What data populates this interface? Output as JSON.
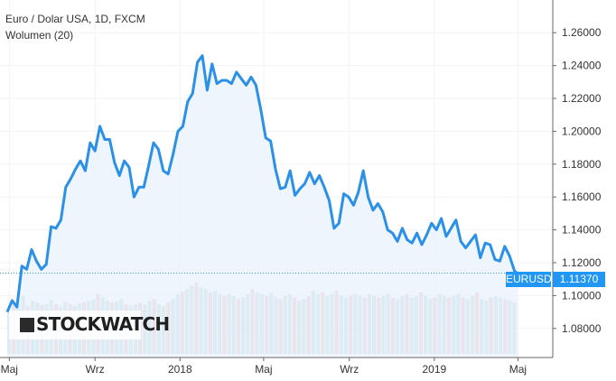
{
  "chart_title": "Euro / Dolar USA, 1D, FXCM",
  "indicator_title": "Wolumen (20)",
  "logo_text": "STOCKWATCH",
  "symbol_tag": "EURUSD",
  "last_price_label": "1.11370",
  "colors": {
    "line": "#2b90e8",
    "area": "#eaf3fc",
    "vol_up": "#9fc9c1",
    "vol_down": "#ec9fa3",
    "axis_text": "#333333",
    "tag": "#2196f3"
  },
  "chart_data": {
    "type": "line",
    "title": "Euro / Dolar USA, 1D, FXCM",
    "x_ticks": [
      "Maj",
      "Wrz",
      "2018",
      "Maj",
      "Wrz",
      "2019",
      "Maj"
    ],
    "y_ticks": [
      "1.08000",
      "1.10000",
      "1.12000",
      "1.14000",
      "1.16000",
      "1.18000",
      "1.20000",
      "1.22000",
      "1.24000",
      "1.26000"
    ],
    "ylim": [
      1.07,
      1.27
    ],
    "x_range": [
      "2017-04-28",
      "2019-06-20"
    ],
    "series": [
      {
        "points": [
          [
            "2017-04-28",
            1.09
          ],
          [
            "2017-05-05",
            1.097
          ],
          [
            "2017-05-12",
            1.093
          ],
          [
            "2017-05-19",
            1.118
          ],
          [
            "2017-05-26",
            1.116
          ],
          [
            "2017-06-02",
            1.128
          ],
          [
            "2017-06-09",
            1.121
          ],
          [
            "2017-06-16",
            1.116
          ],
          [
            "2017-06-23",
            1.119
          ],
          [
            "2017-06-30",
            1.142
          ],
          [
            "2017-07-07",
            1.141
          ],
          [
            "2017-07-14",
            1.146
          ],
          [
            "2017-07-21",
            1.166
          ],
          [
            "2017-07-28",
            1.171
          ],
          [
            "2017-08-04",
            1.177
          ],
          [
            "2017-08-11",
            1.182
          ],
          [
            "2017-08-18",
            1.176
          ],
          [
            "2017-08-25",
            1.193
          ],
          [
            "2017-09-01",
            1.188
          ],
          [
            "2017-09-08",
            1.203
          ],
          [
            "2017-09-15",
            1.195
          ],
          [
            "2017-09-22",
            1.195
          ],
          [
            "2017-09-29",
            1.181
          ],
          [
            "2017-10-06",
            1.173
          ],
          [
            "2017-10-13",
            1.182
          ],
          [
            "2017-10-20",
            1.178
          ],
          [
            "2017-10-27",
            1.16
          ],
          [
            "2017-11-03",
            1.166
          ],
          [
            "2017-11-10",
            1.166
          ],
          [
            "2017-11-17",
            1.179
          ],
          [
            "2017-11-24",
            1.193
          ],
          [
            "2017-12-01",
            1.189
          ],
          [
            "2017-12-08",
            1.176
          ],
          [
            "2017-12-15",
            1.174
          ],
          [
            "2017-12-22",
            1.186
          ],
          [
            "2017-12-29",
            1.2
          ],
          [
            "2018-01-05",
            1.203
          ],
          [
            "2018-01-12",
            1.218
          ],
          [
            "2018-01-19",
            1.223
          ],
          [
            "2018-01-26",
            1.242
          ],
          [
            "2018-02-02",
            1.246
          ],
          [
            "2018-02-09",
            1.225
          ],
          [
            "2018-02-16",
            1.241
          ],
          [
            "2018-02-23",
            1.229
          ],
          [
            "2018-03-02",
            1.231
          ],
          [
            "2018-03-09",
            1.231
          ],
          [
            "2018-03-16",
            1.229
          ],
          [
            "2018-03-23",
            1.236
          ],
          [
            "2018-03-30",
            1.232
          ],
          [
            "2018-04-06",
            1.228
          ],
          [
            "2018-04-13",
            1.233
          ],
          [
            "2018-04-20",
            1.228
          ],
          [
            "2018-04-27",
            1.213
          ],
          [
            "2018-05-04",
            1.196
          ],
          [
            "2018-05-11",
            1.194
          ],
          [
            "2018-05-18",
            1.177
          ],
          [
            "2018-05-25",
            1.165
          ],
          [
            "2018-06-01",
            1.166
          ],
          [
            "2018-06-08",
            1.176
          ],
          [
            "2018-06-15",
            1.161
          ],
          [
            "2018-06-22",
            1.165
          ],
          [
            "2018-06-29",
            1.168
          ],
          [
            "2018-07-06",
            1.175
          ],
          [
            "2018-07-13",
            1.168
          ],
          [
            "2018-07-20",
            1.173
          ],
          [
            "2018-07-27",
            1.166
          ],
          [
            "2018-08-03",
            1.158
          ],
          [
            "2018-08-10",
            1.141
          ],
          [
            "2018-08-17",
            1.144
          ],
          [
            "2018-08-24",
            1.162
          ],
          [
            "2018-08-31",
            1.16
          ],
          [
            "2018-09-07",
            1.155
          ],
          [
            "2018-09-14",
            1.163
          ],
          [
            "2018-09-21",
            1.176
          ],
          [
            "2018-09-28",
            1.16
          ],
          [
            "2018-10-05",
            1.152
          ],
          [
            "2018-10-12",
            1.156
          ],
          [
            "2018-10-19",
            1.151
          ],
          [
            "2018-10-26",
            1.14
          ],
          [
            "2018-11-02",
            1.138
          ],
          [
            "2018-11-09",
            1.133
          ],
          [
            "2018-11-16",
            1.141
          ],
          [
            "2018-11-23",
            1.134
          ],
          [
            "2018-11-30",
            1.132
          ],
          [
            "2018-12-07",
            1.138
          ],
          [
            "2018-12-14",
            1.131
          ],
          [
            "2018-12-21",
            1.137
          ],
          [
            "2018-12-28",
            1.144
          ],
          [
            "2019-01-04",
            1.14
          ],
          [
            "2019-01-11",
            1.147
          ],
          [
            "2019-01-18",
            1.136
          ],
          [
            "2019-01-25",
            1.141
          ],
          [
            "2019-02-01",
            1.146
          ],
          [
            "2019-02-08",
            1.133
          ],
          [
            "2019-02-15",
            1.129
          ],
          [
            "2019-02-22",
            1.133
          ],
          [
            "2019-03-01",
            1.137
          ],
          [
            "2019-03-08",
            1.123
          ],
          [
            "2019-03-15",
            1.132
          ],
          [
            "2019-03-22",
            1.131
          ],
          [
            "2019-03-29",
            1.122
          ],
          [
            "2019-04-05",
            1.121
          ],
          [
            "2019-04-12",
            1.13
          ],
          [
            "2019-04-19",
            1.124
          ],
          [
            "2019-04-26",
            1.115
          ],
          [
            "2019-04-30",
            1.1137
          ]
        ]
      }
    ],
    "volume": {
      "title": "Wolumen (20)",
      "values": [
        0.52,
        0.6,
        0.55,
        0.7,
        0.58,
        0.64,
        0.62,
        0.59,
        0.6,
        0.65,
        0.6,
        0.57,
        0.63,
        0.6,
        0.58,
        0.61,
        0.62,
        0.64,
        0.66,
        0.72,
        0.68,
        0.64,
        0.62,
        0.63,
        0.66,
        0.6,
        0.58,
        0.6,
        0.62,
        0.6,
        0.64,
        0.66,
        0.6,
        0.58,
        0.62,
        0.66,
        0.72,
        0.75,
        0.78,
        0.82,
        0.86,
        0.8,
        0.78,
        0.74,
        0.76,
        0.72,
        0.7,
        0.72,
        0.7,
        0.66,
        0.68,
        0.72,
        0.78,
        0.74,
        0.72,
        0.7,
        0.74,
        0.68,
        0.66,
        0.7,
        0.72,
        0.68,
        0.64,
        0.66,
        0.7,
        0.76,
        0.72,
        0.74,
        0.7,
        0.72,
        0.76,
        0.7,
        0.68,
        0.7,
        0.72,
        0.7,
        0.68,
        0.72,
        0.7,
        0.68,
        0.7,
        0.72,
        0.68,
        0.66,
        0.7,
        0.72,
        0.68,
        0.7,
        0.74,
        0.7,
        0.66,
        0.68,
        0.72,
        0.7,
        0.68,
        0.7,
        0.72,
        0.68,
        0.66,
        0.7,
        0.74,
        0.66,
        0.64,
        0.68,
        0.7,
        0.68,
        0.66,
        0.64,
        0.62
      ]
    }
  }
}
